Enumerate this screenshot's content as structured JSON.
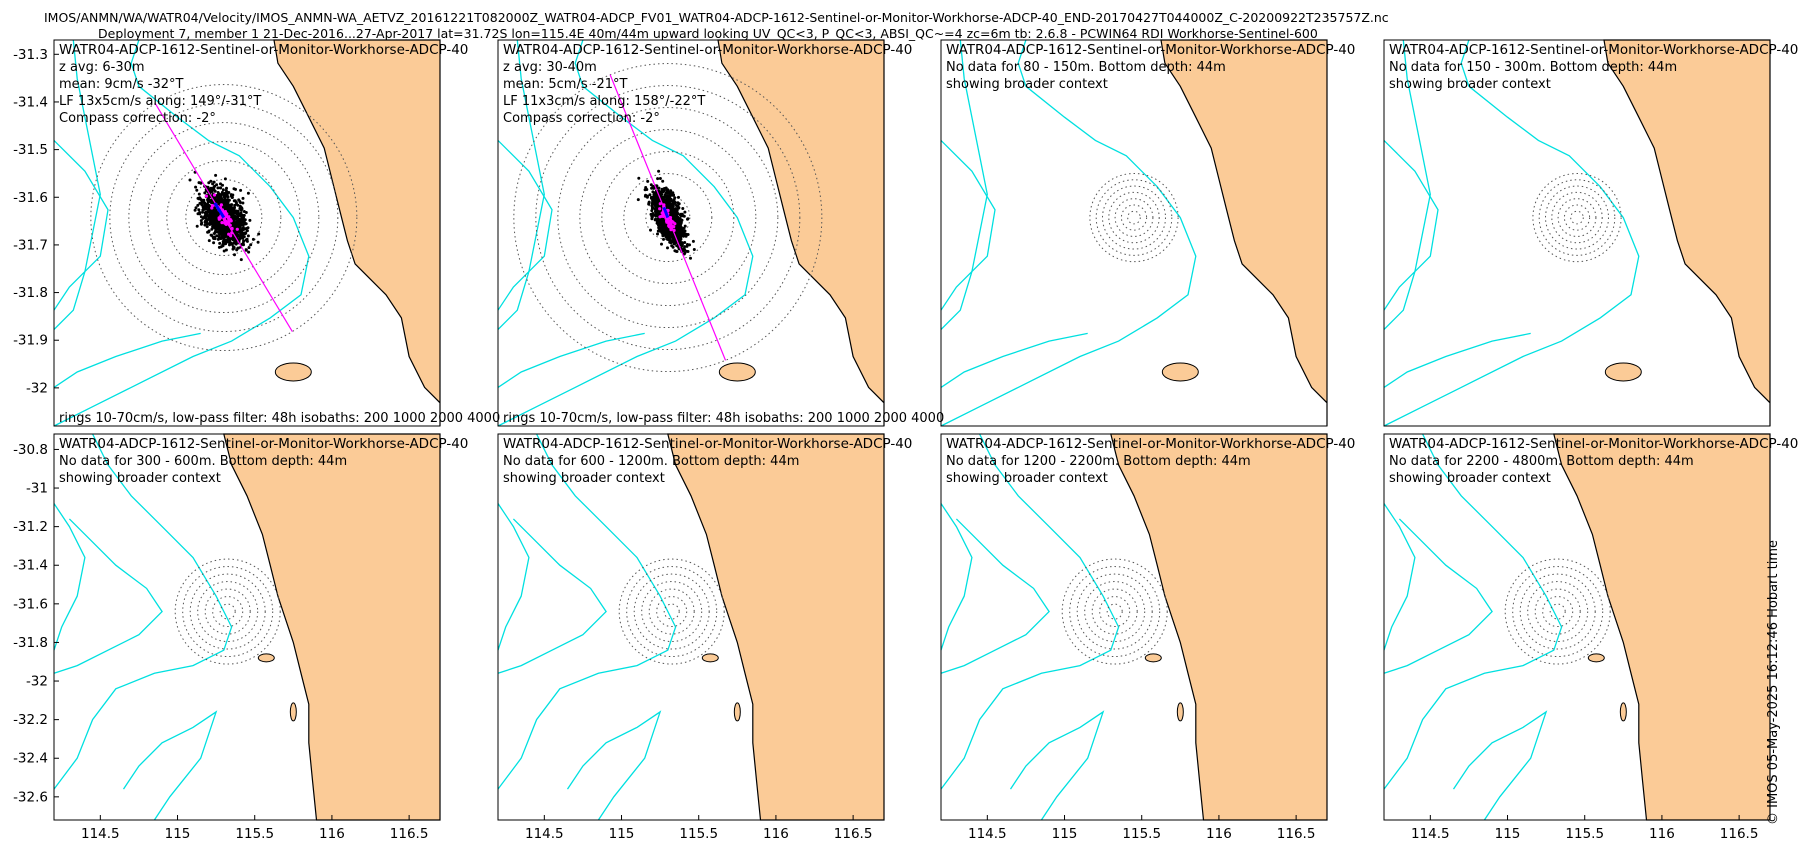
{
  "header": {
    "title_line1": "IMOS/ANMN/WA/WATR04/Velocity/IMOS_ANMN-WA_AETVZ_20161221T082000Z_WATR04-ADCP_FV01_WATR04-ADCP-1612-Sentinel-or-Monitor-Workhorse-ADCP-40_END-20170427T044000Z_C-20200922T235757Z.nc",
    "title_line2": "Deployment 7, member 1 21-Dec-2016...27-Apr-2017 lat=31.72S lon=115.4E 40m/44m upward looking UV_QC<3, P_QC<3, ABSI_QC~=4 zc=6m tb: 2.6.8 - PCWIN64 RDI Workhorse-Sentinel-600"
  },
  "credit": "© IMOS 05-May-2025 16:12:46 Hobart time",
  "colors": {
    "land": "#fbcb97",
    "isobath": "#00e0e0",
    "scatter": "#000000",
    "lowpass": "#ff00ff",
    "mean_arrow": "#0000ff",
    "rings": "#555555",
    "frame": "#000000"
  },
  "chart_data": [
    {
      "type": "scatter",
      "panel_title": "WATR04-ADCP-1612-Sentinel-or-Monitor-Workhorse-ADCP-40",
      "info_lines": [
        "z avg: 6-30m",
        "mean: 9cm/s -32°T",
        "LF 13x5cm/s along: 149°/-31°T",
        "Compass correction: -2°"
      ],
      "footer": "rings 10-70cm/s, low-pass filter: 48h isobaths: 200 1000 2000 4000",
      "has_data": true,
      "ellipse": {
        "major": 13,
        "minor": 5,
        "angle": 149
      },
      "mean": {
        "speed": 9,
        "direction": -32
      },
      "yticks": [
        "-31.3",
        "-31.4",
        "-31.5",
        "-31.6",
        "-31.7",
        "-31.8",
        "-31.9",
        "-32"
      ],
      "xticks": [],
      "ylim": [
        -32.08,
        -31.27
      ]
    },
    {
      "type": "scatter",
      "panel_title": "WATR04-ADCP-1612-Sentinel-or-Monitor-Workhorse-ADCP-40",
      "info_lines": [
        "z avg: 30-40m",
        "mean: 5cm/s -21°T",
        "LF 11x3cm/s along: 158°/-22°T",
        "Compass correction: -2°"
      ],
      "footer": "rings 10-70cm/s, low-pass filter: 48h isobaths: 200 1000 2000 4000",
      "has_data": true,
      "ellipse": {
        "major": 11,
        "minor": 3,
        "angle": 158
      },
      "mean": {
        "speed": 5,
        "direction": -21
      },
      "yticks": [],
      "xticks": []
    },
    {
      "type": "scatter",
      "panel_title": "WATR04-ADCP-1612-Sentinel-or-Monitor-Workhorse-ADCP-40",
      "info_lines": [
        "No data for 80 - 150m. Bottom depth: 44m",
        "showing broader context"
      ],
      "footer": "",
      "has_data": false,
      "yticks": [],
      "xticks": []
    },
    {
      "type": "scatter",
      "panel_title": "WATR04-ADCP-1612-Sentinel-or-Monitor-Workhorse-ADCP-40",
      "info_lines": [
        "No data for 150 - 300m. Bottom depth: 44m",
        "showing broader context"
      ],
      "footer": "",
      "has_data": false,
      "yticks": [],
      "xticks": []
    },
    {
      "type": "scatter",
      "panel_title": "WATR04-ADCP-1612-Sentinel-or-Monitor-Workhorse-ADCP-40",
      "info_lines": [
        "No data for 300 - 600m. Bottom depth: 44m",
        "showing broader context"
      ],
      "footer": "",
      "has_data": false,
      "yticks": [
        "-30.8",
        "-31",
        "-31.2",
        "-31.4",
        "-31.6",
        "-31.8",
        "-32",
        "-32.2",
        "-32.4",
        "-32.6"
      ],
      "xticks": [
        "114.5",
        "115",
        "115.5",
        "116",
        "116.5"
      ],
      "xlim": [
        114.2,
        116.7
      ],
      "ylim": [
        -32.72,
        -30.72
      ]
    },
    {
      "type": "scatter",
      "panel_title": "WATR04-ADCP-1612-Sentinel-or-Monitor-Workhorse-ADCP-40",
      "info_lines": [
        "No data for 600 - 1200m. Bottom depth: 44m",
        "showing broader context"
      ],
      "footer": "",
      "has_data": false,
      "yticks": [],
      "xticks": [
        "114.5",
        "115",
        "115.5",
        "116",
        "116.5"
      ]
    },
    {
      "type": "scatter",
      "panel_title": "WATR04-ADCP-1612-Sentinel-or-Monitor-Workhorse-ADCP-40",
      "info_lines": [
        "No data for 1200 - 2200m. Bottom depth: 44m",
        "showing broader context"
      ],
      "footer": "",
      "has_data": false,
      "yticks": [],
      "xticks": [
        "114.5",
        "115",
        "115.5",
        "116",
        "116.5"
      ]
    },
    {
      "type": "scatter",
      "panel_title": "WATR04-ADCP-1612-Sentinel-or-Monitor-Workhorse-ADCP-40",
      "info_lines": [
        "No data for 2200 - 4800m. Bottom depth: 44m",
        "showing broader context"
      ],
      "footer": "",
      "has_data": false,
      "yticks": [],
      "xticks": [
        "114.5",
        "115",
        "115.5",
        "116",
        "116.5"
      ]
    }
  ]
}
